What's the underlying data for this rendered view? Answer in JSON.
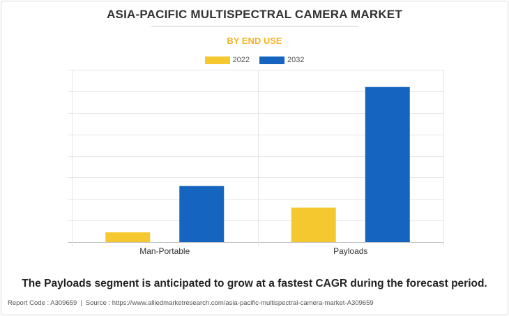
{
  "title": "ASIA-PACIFIC MULTISPECTRAL CAMERA MARKET",
  "subtitle": "BY END USE",
  "note": "The Payloads segment is anticipated to grow at a fastest CAGR during the forecast period.",
  "footer": {
    "report_code": "Report Code : A309659",
    "separator": "|",
    "source": "Source : https://www.alliedmarketresearch.com/asia-pacific-multispectral-camera-market-A309659"
  },
  "chart_data": {
    "type": "bar",
    "categories": [
      "Man-Portable",
      "Payloads"
    ],
    "series": [
      {
        "name": "2022",
        "color": "#f5c830",
        "values": [
          4.5,
          16
        ]
      },
      {
        "name": "2032",
        "color": "#1565c0",
        "values": [
          26,
          72
        ]
      }
    ],
    "ylim": [
      0,
      80
    ],
    "grid": true,
    "legend_position": "top-center",
    "y_tick_labels_shown": false
  }
}
